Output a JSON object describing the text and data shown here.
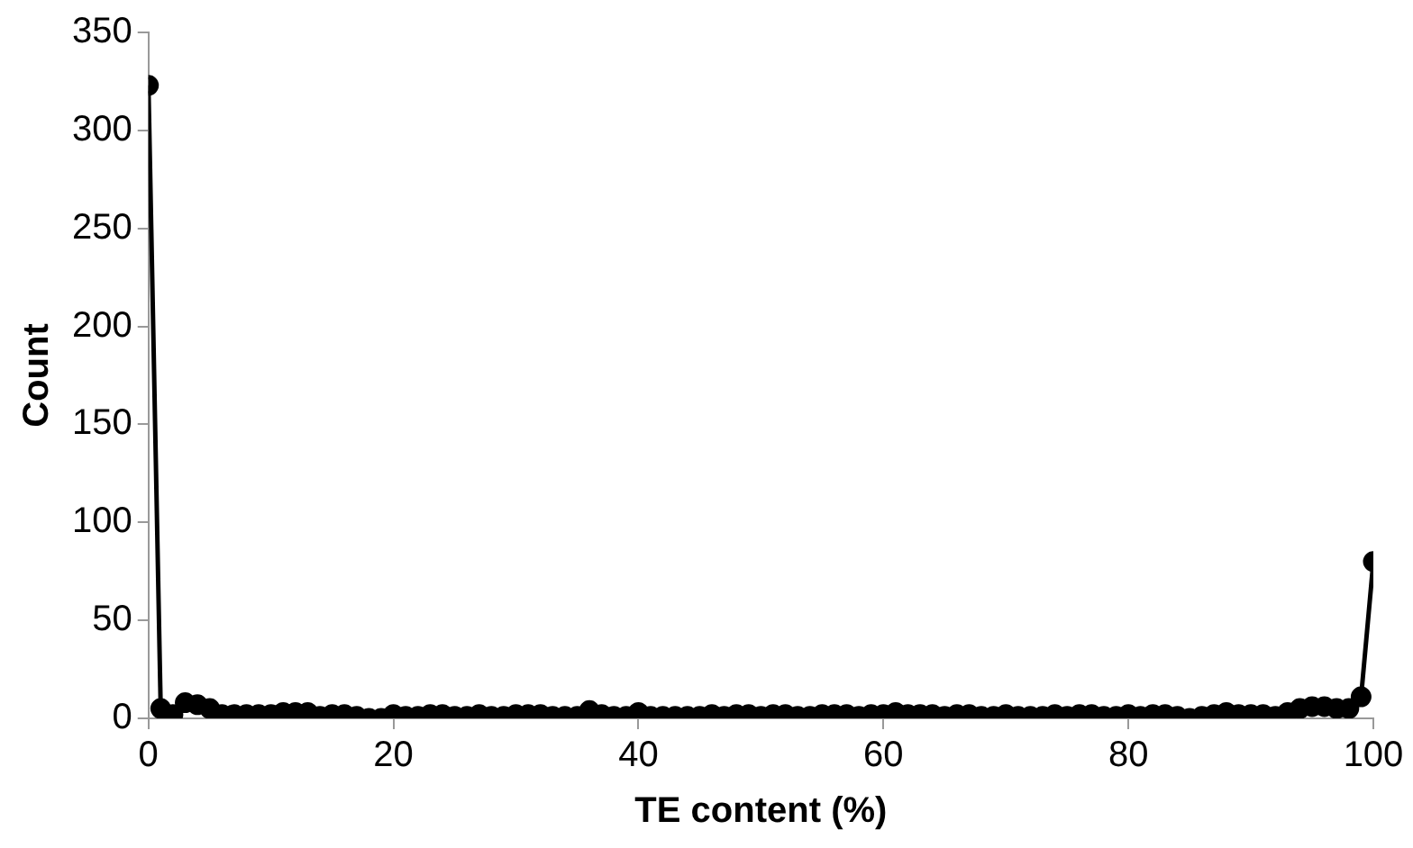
{
  "chart_data": {
    "type": "line",
    "xlabel": "TE content (%)",
    "ylabel": "Count",
    "x": [
      0,
      1,
      2,
      3,
      4,
      5,
      6,
      7,
      8,
      9,
      10,
      11,
      12,
      13,
      14,
      15,
      16,
      17,
      18,
      19,
      20,
      21,
      22,
      23,
      24,
      25,
      26,
      27,
      28,
      29,
      30,
      31,
      32,
      33,
      34,
      35,
      36,
      37,
      38,
      39,
      40,
      41,
      42,
      43,
      44,
      45,
      46,
      47,
      48,
      49,
      50,
      51,
      52,
      53,
      54,
      55,
      56,
      57,
      58,
      59,
      60,
      61,
      62,
      63,
      64,
      65,
      66,
      67,
      68,
      69,
      70,
      71,
      72,
      73,
      74,
      75,
      76,
      77,
      78,
      79,
      80,
      81,
      82,
      83,
      84,
      85,
      86,
      87,
      88,
      89,
      90,
      91,
      92,
      93,
      94,
      95,
      96,
      97,
      98,
      99,
      100
    ],
    "series": [
      {
        "color": "#000000",
        "values": [
          323,
          5,
          2,
          8,
          7,
          5,
          2,
          2,
          2,
          2,
          2,
          3,
          3,
          3,
          1,
          2,
          2,
          1,
          0,
          0,
          2,
          1,
          1,
          2,
          2,
          1,
          1,
          2,
          1,
          1,
          2,
          2,
          2,
          1,
          1,
          1,
          4,
          2,
          1,
          1,
          3,
          1,
          1,
          1,
          1,
          1,
          2,
          1,
          2,
          2,
          1,
          2,
          2,
          1,
          1,
          2,
          2,
          2,
          1,
          2,
          2,
          3,
          2,
          2,
          2,
          1,
          2,
          2,
          1,
          1,
          2,
          1,
          1,
          1,
          2,
          1,
          2,
          2,
          1,
          1,
          2,
          1,
          2,
          2,
          1,
          0,
          1,
          2,
          3,
          2,
          2,
          2,
          1,
          3,
          5,
          6,
          6,
          5,
          5,
          11,
          80
        ]
      }
    ],
    "xlim": [
      0,
      100
    ],
    "xticks": [
      0,
      20,
      40,
      60,
      80,
      100
    ],
    "ylim": [
      0,
      350
    ],
    "yticks": [
      0,
      50,
      100,
      150,
      200,
      250,
      300,
      350
    ],
    "grid": false,
    "legend": false,
    "marker": "circle",
    "line_style": "solid"
  }
}
